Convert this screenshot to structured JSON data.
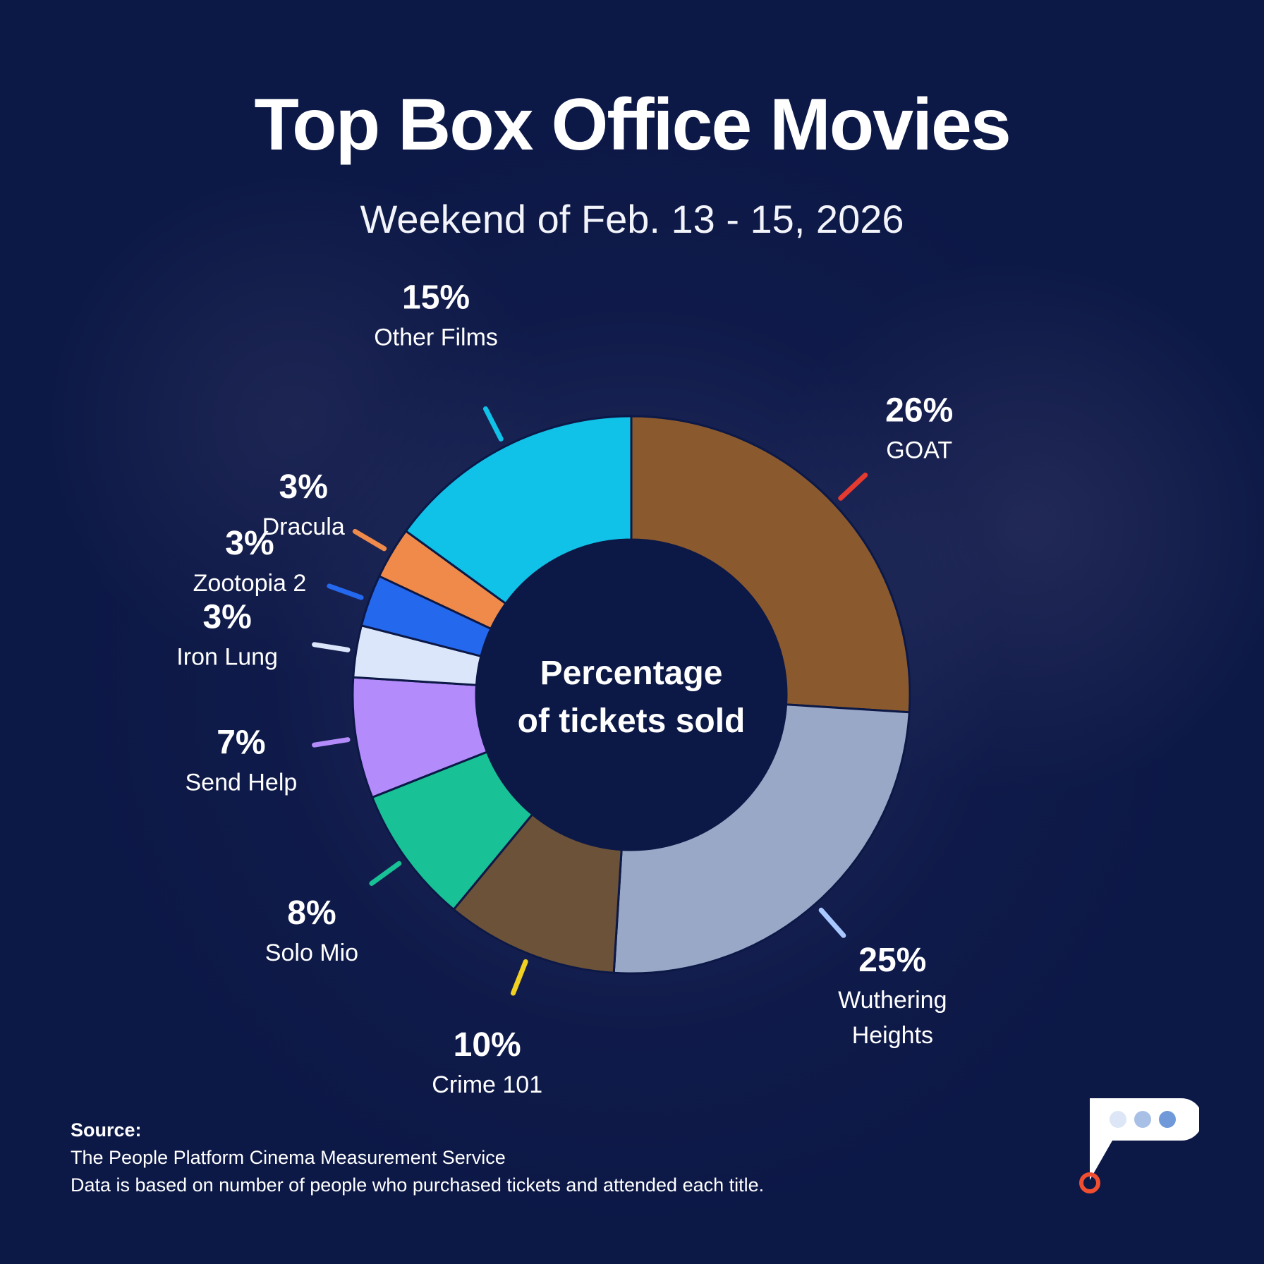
{
  "title": "Top Box Office Movies",
  "subtitle": "Weekend of Feb. 13 - 15, 2026",
  "center_label": [
    "Percentage",
    "of tickets sold"
  ],
  "source": {
    "heading": "Source:",
    "line1": "The People Platform Cinema Measurement Service",
    "line2": "Data is based on number of people who purchased tickets and attended each title."
  },
  "colors": {
    "background": "#0c1846",
    "accent_orange": "#f04e30"
  },
  "chart_data": {
    "type": "pie",
    "variant": "donut",
    "slices": [
      {
        "name": "GOAT",
        "value": 26,
        "label": "26%",
        "color": "#8a5a2e",
        "label_lines": [
          "GOAT"
        ]
      },
      {
        "name": "Wuthering Heights",
        "value": 25,
        "label": "25%",
        "color": "#9aa8c8",
        "label_lines": [
          "Wuthering",
          "Heights"
        ]
      },
      {
        "name": "Crime 101",
        "value": 10,
        "label": "10%",
        "color": "#6b5238",
        "label_lines": [
          "Crime 101"
        ]
      },
      {
        "name": "Solo Mio",
        "value": 8,
        "label": "8%",
        "color": "#18c196",
        "label_lines": [
          "Solo Mio"
        ]
      },
      {
        "name": "Send Help",
        "value": 7,
        "label": "7%",
        "color": "#b38bfa",
        "label_lines": [
          "Send Help"
        ]
      },
      {
        "name": "Iron Lung",
        "value": 3,
        "label": "3%",
        "color": "#dce6fb",
        "label_lines": [
          "Iron Lung"
        ]
      },
      {
        "name": "Zootopia 2",
        "value": 3,
        "label": "3%",
        "color": "#2468ee",
        "label_lines": [
          "Zootopia 2"
        ]
      },
      {
        "name": "Dracula",
        "value": 3,
        "label": "3%",
        "color": "#ef8a4a",
        "label_lines": [
          "Dracula"
        ]
      },
      {
        "name": "Other Films",
        "value": 15,
        "label": "15%",
        "color": "#10c1e8",
        "label_lines": [
          "Other Films"
        ]
      }
    ],
    "leader_colors": [
      "#e53a2f",
      "#a8c8ff",
      "#f0d020",
      "#18c196",
      "#b38bfa",
      "#dce6fb",
      "#2468ee",
      "#ef8a4a",
      "#10c1e8"
    ],
    "start": "12 o'clock",
    "direction": "clockwise"
  }
}
